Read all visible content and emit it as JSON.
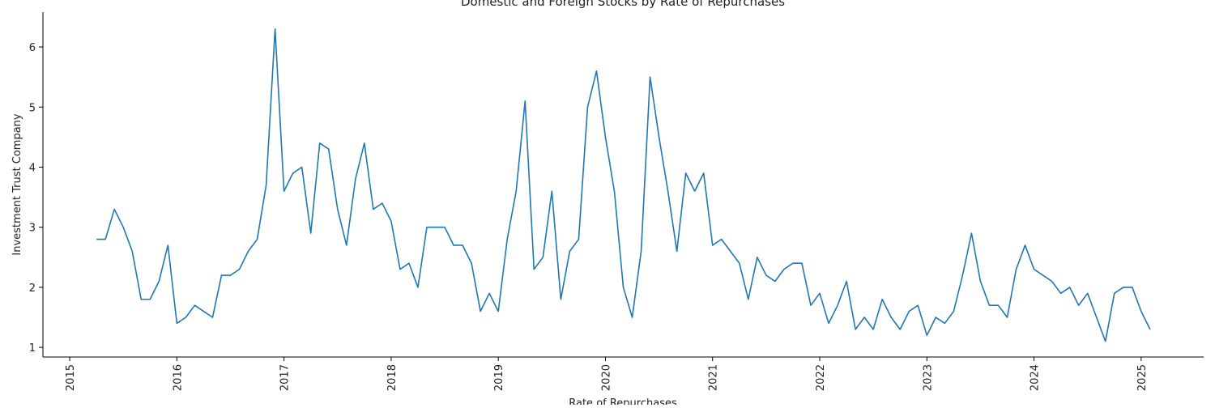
{
  "chart_data": {
    "type": "line",
    "title": "Domestic and Foreign Stocks by Rate of Repurchases",
    "xlabel": "Rate of Repurchases",
    "ylabel": "Investment Trust Company",
    "x_ticks": [
      "2015",
      "2016",
      "2017",
      "2018",
      "2019",
      "2020",
      "2021",
      "2022",
      "2023",
      "2024",
      "2025"
    ],
    "y_ticks": [
      1,
      2,
      3,
      4,
      5,
      6
    ],
    "xlim": [
      "2014-10-01",
      "2025-08-01"
    ],
    "ylim": [
      0.84,
      6.58
    ],
    "grid": false,
    "colors": {
      "line": "#1f77b4",
      "axis": "#000000",
      "text": "#222222"
    },
    "series": [
      {
        "x": [
          "2015-04",
          "2015-05",
          "2015-06",
          "2015-07",
          "2015-08",
          "2015-09",
          "2015-10",
          "2015-11",
          "2015-12",
          "2016-01",
          "2016-02",
          "2016-03",
          "2016-04",
          "2016-05",
          "2016-06",
          "2016-07",
          "2016-08",
          "2016-09",
          "2016-10",
          "2016-11",
          "2016-12",
          "2017-01",
          "2017-02",
          "2017-03",
          "2017-04",
          "2017-05",
          "2017-06",
          "2017-07",
          "2017-08",
          "2017-09",
          "2017-10",
          "2017-11",
          "2017-12",
          "2018-01",
          "2018-02",
          "2018-03",
          "2018-04",
          "2018-05",
          "2018-06",
          "2018-07",
          "2018-08",
          "2018-09",
          "2018-10",
          "2018-11",
          "2018-12",
          "2019-01",
          "2019-02",
          "2019-03",
          "2019-04",
          "2019-05",
          "2019-06",
          "2019-07",
          "2019-08",
          "2019-09",
          "2019-10",
          "2019-11",
          "2019-12",
          "2020-01",
          "2020-02",
          "2020-03",
          "2020-04",
          "2020-05",
          "2020-06",
          "2020-07",
          "2020-08",
          "2020-09",
          "2020-10",
          "2020-11",
          "2020-12",
          "2021-01",
          "2021-02",
          "2021-03",
          "2021-04",
          "2021-05",
          "2021-06",
          "2021-07",
          "2021-08",
          "2021-09",
          "2021-10",
          "2021-11",
          "2021-12",
          "2022-01",
          "2022-02",
          "2022-03",
          "2022-04",
          "2022-05",
          "2022-06",
          "2022-07",
          "2022-08",
          "2022-09",
          "2022-10",
          "2022-11",
          "2022-12",
          "2023-01",
          "2023-02",
          "2023-03",
          "2023-04",
          "2023-05",
          "2023-06",
          "2023-07",
          "2023-08",
          "2023-09",
          "2023-10",
          "2023-11",
          "2023-12",
          "2024-01",
          "2024-02",
          "2024-03",
          "2024-04",
          "2024-05",
          "2024-06",
          "2024-07",
          "2024-08",
          "2024-09",
          "2024-10",
          "2024-11",
          "2024-12",
          "2025-01",
          "2025-02"
        ],
        "values": [
          2.8,
          2.8,
          3.3,
          3.0,
          2.6,
          1.8,
          1.8,
          2.1,
          2.7,
          1.4,
          1.5,
          1.7,
          1.6,
          1.5,
          2.2,
          2.2,
          2.3,
          2.6,
          2.8,
          3.7,
          6.3,
          3.6,
          3.9,
          4.0,
          2.9,
          4.4,
          4.3,
          3.3,
          2.7,
          3.8,
          4.4,
          3.3,
          3.4,
          3.1,
          2.3,
          2.4,
          2.0,
          3.0,
          3.0,
          3.0,
          2.7,
          2.7,
          2.4,
          1.6,
          1.9,
          1.6,
          2.8,
          3.6,
          5.1,
          2.3,
          2.5,
          3.6,
          1.8,
          2.6,
          2.8,
          5.0,
          5.6,
          4.5,
          3.6,
          2.0,
          1.5,
          2.6,
          5.5,
          4.5,
          3.6,
          2.6,
          3.9,
          3.6,
          3.9,
          2.7,
          2.8,
          2.6,
          2.4,
          1.8,
          2.5,
          2.2,
          2.1,
          2.3,
          2.4,
          2.4,
          1.7,
          1.9,
          1.4,
          1.7,
          2.1,
          1.3,
          1.5,
          1.3,
          1.8,
          1.5,
          1.3,
          1.6,
          1.7,
          1.2,
          1.5,
          1.4,
          1.6,
          2.2,
          2.9,
          2.1,
          1.7,
          1.7,
          1.5,
          2.3,
          2.7,
          2.3,
          2.2,
          2.1,
          1.9,
          2.0,
          1.7,
          1.9,
          1.5,
          1.1,
          1.9,
          2.0,
          2.0,
          1.6,
          1.3
        ]
      }
    ]
  }
}
